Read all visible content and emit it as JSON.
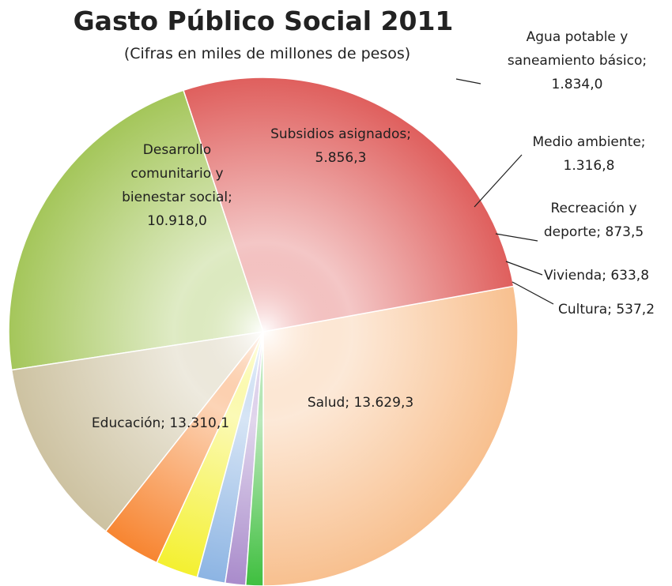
{
  "chart_data": {
    "type": "pie",
    "title": "Gasto Público Social 2011",
    "subtitle": "(Cifras en miles de millones de pesos)",
    "slices": [
      {
        "label_lines": [
          "Salud; 13.629,3"
        ],
        "value": 13629.3,
        "color": "#f8c08f"
      },
      {
        "label_lines": [
          "Educación; 13.310,1"
        ],
        "value": 13310.1,
        "color": "#df5f5d"
      },
      {
        "label_lines": [
          "Desarrollo",
          "comunitario y",
          "bienestar social;",
          "10.918,0"
        ],
        "value": 10918.0,
        "color": "#a4c65a"
      },
      {
        "label_lines": [
          "Subsidios asignados;",
          "5.856,3"
        ],
        "value": 5856.3,
        "color": "#cdc2a1"
      },
      {
        "label_lines": [
          "Agua potable y",
          "saneamiento básico;",
          "1.834,0"
        ],
        "value": 1834.0,
        "color": "#f78531"
      },
      {
        "label_lines": [
          "Medio ambiente;",
          "1.316,8"
        ],
        "value": 1316.8,
        "color": "#f4f030"
      },
      {
        "label_lines": [
          "Recreación y",
          "deporte; 873,5"
        ],
        "value": 873.5,
        "color": "#8cb4e3"
      },
      {
        "label_lines": [
          "Vivienda; 633,8"
        ],
        "value": 633.8,
        "color": "#a98bcb"
      },
      {
        "label_lines": [
          "Cultura; 537,2"
        ],
        "value": 537.2,
        "color": "#3fbf3f"
      }
    ],
    "start": "12 o'clock",
    "direction": "counterclockwise",
    "legend": "none"
  }
}
